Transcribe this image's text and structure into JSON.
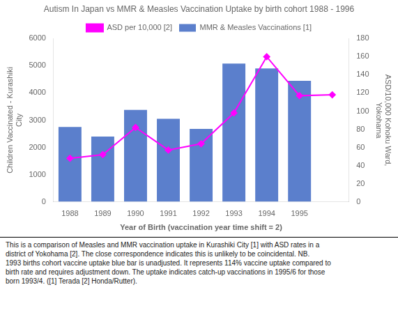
{
  "chart_data": {
    "type": "bar",
    "title": "Autism In Japan vs MMR & Measles Vaccination Uptake by birth cohort 1988 - 1996",
    "xlabel": "Year of Birth (vaccination year time shift = 2)",
    "ylabel": "Children Vaccinated - Kurashiki\nCity",
    "y2label": "ASD/10,000 Kohoku Ward,\nYokohama",
    "categories": [
      "1988",
      "1989",
      "1990",
      "1991",
      "1992",
      "1993",
      "1994",
      "1995",
      null
    ],
    "series": [
      {
        "name": "MMR & Measles Vaccinations [1]",
        "type": "bar",
        "color": "#5b7fcc",
        "values": [
          2750,
          2400,
          3380,
          3050,
          2680,
          5080,
          4900,
          4450,
          null
        ]
      },
      {
        "name": "ASD per 10,000 [2]",
        "type": "line",
        "color": "#ff00ff",
        "marker": "diamond",
        "axis": "y2",
        "values": [
          48,
          52,
          82,
          57,
          64,
          98,
          160,
          117,
          118
        ]
      }
    ],
    "ylim": [
      0,
      6000
    ],
    "yticks": [
      0,
      1000,
      2000,
      3000,
      4000,
      5000,
      6000
    ],
    "y2lim": [
      0,
      180
    ],
    "y2ticks": [
      0,
      20,
      40,
      60,
      80,
      100,
      120,
      140,
      160,
      180
    ],
    "grid": false,
    "legend": "top",
    "annotations": [
      "This is a comparison of Measles and MMR vaccination uptake in Kurashiki City [1] with ASD rates in a",
      "district of Yokohama [2].  The close correspondence indicates this is unlikely to be coincidental.  NB.",
      "1993 births cohort vaccine uptake blue bar is unadjusted.  It represents 114% vaccine uptake compared to",
      "birth rate and requires adjustment down.  The uptake indicates catch-up vaccinations in 1995/6 for those",
      "born 1993/4.  ([1] Terada [2] Honda/Rutter)."
    ]
  }
}
